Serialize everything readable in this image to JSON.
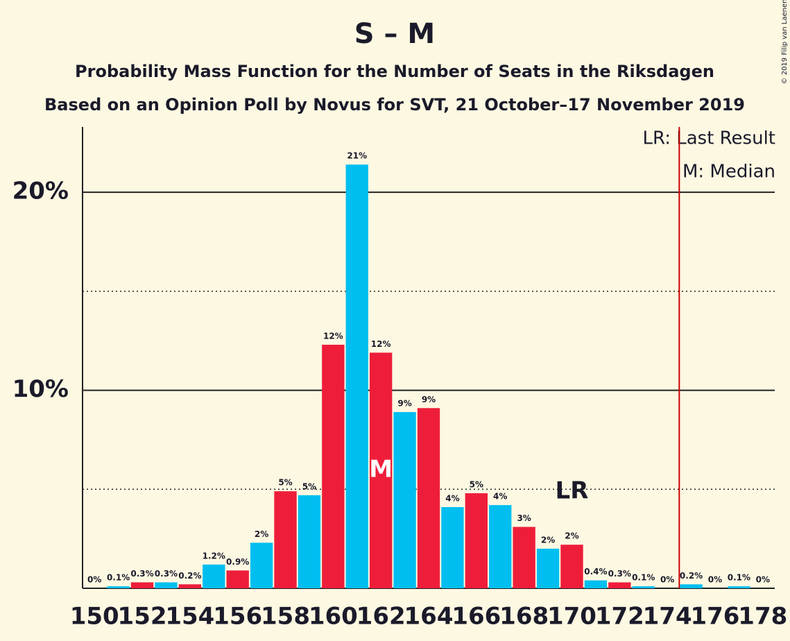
{
  "chart_data": {
    "type": "bar",
    "title": "S – M",
    "subtitle": "Probability Mass Function for the Number of Seats in the Riksdagen",
    "subtitle2": "Based on an Opinion Poll by Novus for SVT, 21 October–17 November 2019",
    "copyright": "© 2019 Filip van Laenen",
    "categories": [
      150,
      null,
      152,
      null,
      154,
      null,
      156,
      null,
      158,
      null,
      160,
      null,
      162,
      null,
      164,
      null,
      166,
      null,
      168,
      null,
      170,
      null,
      172,
      null,
      174,
      null,
      176,
      null,
      178
    ],
    "seats": [
      150,
      151,
      152,
      153,
      154,
      155,
      156,
      157,
      158,
      159,
      160,
      161,
      162,
      163,
      164,
      165,
      166,
      167,
      168,
      169,
      170,
      171,
      172,
      173,
      174,
      175,
      176,
      177,
      178
    ],
    "values": [
      0,
      0.1,
      0.3,
      0.3,
      0.2,
      1.2,
      0.9,
      2.3,
      4.9,
      4.7,
      12.3,
      21.4,
      11.9,
      8.9,
      9.1,
      4.1,
      4.8,
      4.2,
      3.1,
      2.0,
      2.2,
      0.4,
      0.3,
      0.1,
      0,
      0.2,
      0,
      0.1,
      0
    ],
    "value_labels": [
      "0%",
      "0.1%",
      "0.3%",
      "0.3%",
      "0.2%",
      "1.2%",
      "0.9%",
      "2%",
      "5%",
      "5%",
      "12%",
      "21%",
      "12%",
      "9%",
      "9%",
      "4%",
      "5%",
      "4%",
      "3%",
      "2%",
      "2%",
      "0.4%",
      "0.3%",
      "0.1%",
      "0%",
      "0.2%",
      "0%",
      "0.1%",
      "0%"
    ],
    "colors": [
      "#ee1e3a",
      "#00bff0"
    ],
    "ylim": [
      0,
      23.3
    ],
    "yticks": [
      {
        "value": 10,
        "label": "10%"
      },
      {
        "value": 20,
        "label": "20%"
      }
    ],
    "minor_yticks": [
      5,
      15
    ],
    "grid": true,
    "median": {
      "seat": 162,
      "label": "M"
    },
    "last_result": {
      "seat": 170,
      "label": "LR"
    },
    "majority_line": {
      "seat": 174.5,
      "color": "#cc0000"
    },
    "legend": [
      "LR: Last Result",
      "M: Median"
    ]
  }
}
